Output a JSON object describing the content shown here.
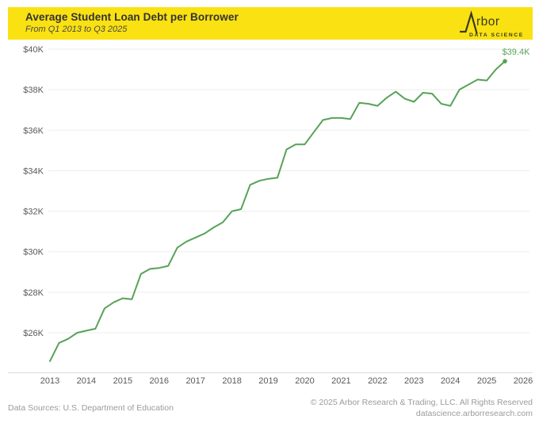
{
  "header": {
    "title": "Average Student Loan Debt per Borrower",
    "subtitle": "From Q1 2013 to Q3 2025"
  },
  "logo": {
    "name": "Arbor",
    "name_after_mark": "rbor",
    "tagline": "DATA SCIENCE"
  },
  "footer": {
    "sources": "Data Sources: U.S. Department of Education",
    "copyright": "© 2025 Arbor Research & Trading, LLC. All Rights Reserved",
    "website": "datascience.arborresearch.com"
  },
  "colors": {
    "accent_yellow": "#FAE112",
    "line_green": "#57A257",
    "grid": "#EDEDED",
    "axis": "#DBDBDB",
    "tick_text": "#595959",
    "footer_text": "#9B9B9B",
    "title_text": "#333333"
  },
  "chart_data": {
    "type": "line",
    "title": "Average Student Loan Debt per Borrower",
    "subtitle": "From Q1 2013 to Q3 2025",
    "unit": "USD thousands per borrower",
    "frequency": "quarterly",
    "x_start": "2013 Q1",
    "x_end": "2025 Q3",
    "x": [
      "2013 Q1",
      "2013 Q2",
      "2013 Q3",
      "2013 Q4",
      "2014 Q1",
      "2014 Q2",
      "2014 Q3",
      "2014 Q4",
      "2015 Q1",
      "2015 Q2",
      "2015 Q3",
      "2015 Q4",
      "2016 Q1",
      "2016 Q2",
      "2016 Q3",
      "2016 Q4",
      "2017 Q1",
      "2017 Q2",
      "2017 Q3",
      "2017 Q4",
      "2018 Q1",
      "2018 Q2",
      "2018 Q3",
      "2018 Q4",
      "2019 Q1",
      "2019 Q2",
      "2019 Q3",
      "2019 Q4",
      "2020 Q1",
      "2020 Q2",
      "2020 Q3",
      "2020 Q4",
      "2021 Q1",
      "2021 Q2",
      "2021 Q3",
      "2021 Q4",
      "2022 Q1",
      "2022 Q2",
      "2022 Q3",
      "2022 Q4",
      "2023 Q1",
      "2023 Q2",
      "2023 Q3",
      "2023 Q4",
      "2024 Q1",
      "2024 Q2",
      "2024 Q3",
      "2024 Q4",
      "2025 Q1",
      "2025 Q2",
      "2025 Q3"
    ],
    "series": [
      {
        "name": "Average student loan debt per borrower ($K)",
        "color": "#57A257",
        "values": [
          24.6,
          25.5,
          25.7,
          26.0,
          26.1,
          26.2,
          27.2,
          27.5,
          27.7,
          27.65,
          28.9,
          29.15,
          29.2,
          29.3,
          30.2,
          30.5,
          30.7,
          30.9,
          31.2,
          31.45,
          32.0,
          32.1,
          33.3,
          33.5,
          33.6,
          33.65,
          35.05,
          35.3,
          35.3,
          35.9,
          36.5,
          36.6,
          36.6,
          36.55,
          37.35,
          37.3,
          37.2,
          37.6,
          37.9,
          37.55,
          37.4,
          37.85,
          37.8,
          37.3,
          37.2,
          38.0,
          38.25,
          38.5,
          38.45,
          39.0,
          39.4
        ]
      }
    ],
    "y_ticks": [
      {
        "value": 26,
        "label": "$26K"
      },
      {
        "value": 28,
        "label": "$28K"
      },
      {
        "value": 30,
        "label": "$30K"
      },
      {
        "value": 32,
        "label": "$32K"
      },
      {
        "value": 34,
        "label": "$34K"
      },
      {
        "value": 36,
        "label": "$36K"
      },
      {
        "value": 38,
        "label": "$38K"
      },
      {
        "value": 40,
        "label": "$40K"
      }
    ],
    "x_ticks": [
      {
        "value": 2013,
        "label": "2013"
      },
      {
        "value": 2014,
        "label": "2014"
      },
      {
        "value": 2015,
        "label": "2015"
      },
      {
        "value": 2016,
        "label": "2016"
      },
      {
        "value": 2017,
        "label": "2017"
      },
      {
        "value": 2018,
        "label": "2018"
      },
      {
        "value": 2019,
        "label": "2019"
      },
      {
        "value": 2020,
        "label": "2020"
      },
      {
        "value": 2021,
        "label": "2021"
      },
      {
        "value": 2022,
        "label": "2022"
      },
      {
        "value": 2023,
        "label": "2023"
      },
      {
        "value": 2024,
        "label": "2024"
      },
      {
        "value": 2025,
        "label": "2025"
      },
      {
        "value": 2026,
        "label": "2026"
      }
    ],
    "ylim": [
      24.3,
      40.5
    ],
    "xlim": [
      2013,
      2026
    ],
    "grid": "horizontal-only",
    "legend": false,
    "end_annotation": {
      "label": "$39.4K",
      "value": 39.4,
      "x": "2025 Q3"
    }
  }
}
